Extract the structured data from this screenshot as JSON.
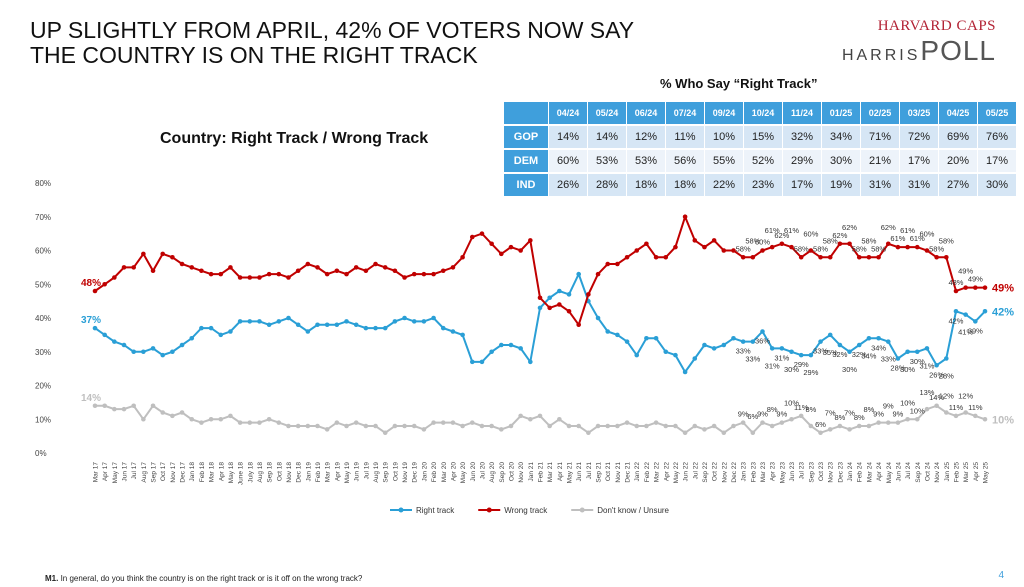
{
  "header": {
    "title": [
      "UP SLIGHTLY FROM APRIL, 42% OF VOTERS NOW SAY",
      "THE COUNTRY IS ON THE RIGHT TRACK"
    ],
    "logo": [
      "HARVARD CAPS",
      "HARRIS",
      "POLL"
    ]
  },
  "table": {
    "title": "% Who Say “Right Track”",
    "columns": [
      "04/24",
      "05/24",
      "06/24",
      "07/24",
      "09/24",
      "10/24",
      "11/24",
      "01/25",
      "02/25",
      "03/25",
      "04/25",
      "05/25"
    ],
    "rows": [
      {
        "label": "GOP",
        "cells": [
          "14%",
          "14%",
          "12%",
          "11%",
          "10%",
          "15%",
          "32%",
          "34%",
          "71%",
          "72%",
          "69%",
          "76%"
        ]
      },
      {
        "label": "DEM",
        "cells": [
          "60%",
          "53%",
          "53%",
          "56%",
          "55%",
          "52%",
          "29%",
          "30%",
          "21%",
          "17%",
          "20%",
          "17%"
        ]
      },
      {
        "label": "IND",
        "cells": [
          "26%",
          "28%",
          "18%",
          "18%",
          "22%",
          "23%",
          "17%",
          "19%",
          "31%",
          "31%",
          "27%",
          "30%"
        ]
      }
    ]
  },
  "chart_data": {
    "type": "line",
    "title": "Country: Right Track / Wrong Track",
    "categories": [
      "Mar 17",
      "Apr 17",
      "May 17",
      "Jun 17",
      "Jul 17",
      "Aug 17",
      "Sep 17",
      "Oct 17",
      "Nov 17",
      "Dec 17",
      "Jan 18",
      "Feb 18",
      "Mar 18",
      "Apr 18",
      "May 18",
      "June 18",
      "July 18",
      "Aug 18",
      "Sep 18",
      "Oct 18",
      "Nov 18",
      "Dec 18",
      "Jan 19",
      "Feb 19",
      "Mar 19",
      "Apr 19",
      "May 19",
      "Jun 19",
      "Jul 19",
      "Aug 19",
      "Sep 19",
      "Oct 19",
      "Nov 19",
      "Dec 19",
      "Jan 20",
      "Feb 20",
      "Mar 20",
      "Apr 20",
      "May 20",
      "Jun 20",
      "Jul 20",
      "Aug 20",
      "Sep 20",
      "Oct 20",
      "Nov 20",
      "Jan 21",
      "Feb 21",
      "Mar 21",
      "Apr 21",
      "May 21",
      "Jun 21",
      "Jul 21",
      "Sep 21",
      "Oct 21",
      "Nov 21",
      "Dec 21",
      "Jan 22",
      "Feb 22",
      "Mar 22",
      "Apr 22",
      "May 22",
      "Jun 22",
      "Jul 22",
      "Sep 22",
      "Oct 22",
      "Nov 22",
      "Dec 22",
      "Jan 23",
      "Feb 23",
      "Mar 23",
      "Apr 23",
      "May 23",
      "Jun 23",
      "Jul 23",
      "Sep 23",
      "Oct 23",
      "Nov 23",
      "Dec 23",
      "Jan 24",
      "Feb 24",
      "Mar 24",
      "Apr 24",
      "May 24",
      "Jun 24",
      "Jul 24",
      "Sep 24",
      "Oct 24",
      "Nov 24",
      "Jan 25",
      "Feb 25",
      "Mar 25",
      "Apr 25",
      "May 25"
    ],
    "series": [
      {
        "name": "Right track",
        "color": "#2a9fd6",
        "values": [
          37,
          35,
          33,
          32,
          30,
          30,
          31,
          29,
          30,
          32,
          34,
          37,
          37,
          35,
          36,
          39,
          39,
          39,
          38,
          39,
          40,
          38,
          36,
          38,
          38,
          38,
          39,
          38,
          37,
          37,
          37,
          39,
          40,
          39,
          39,
          40,
          37,
          36,
          35,
          27,
          27,
          30,
          32,
          32,
          31,
          27,
          43,
          46,
          48,
          47,
          53,
          45,
          40,
          36,
          35,
          33,
          29,
          34,
          34,
          30,
          29,
          24,
          28,
          32,
          31,
          32,
          34,
          33,
          33,
          36,
          31,
          31,
          30,
          29,
          29,
          33,
          35,
          32,
          30,
          32,
          34,
          34,
          33,
          28,
          30,
          30,
          31,
          26,
          28,
          42,
          41,
          39,
          42
        ],
        "value_labels": [
          "37%",
          null,
          null,
          null,
          null,
          null,
          null,
          null,
          null,
          null,
          null,
          null,
          null,
          null,
          null,
          null,
          null,
          null,
          null,
          null,
          null,
          null,
          null,
          null,
          null,
          null,
          null,
          null,
          null,
          null,
          null,
          null,
          null,
          null,
          null,
          null,
          null,
          null,
          null,
          null,
          null,
          null,
          null,
          null,
          null,
          null,
          null,
          null,
          null,
          null,
          null,
          null,
          null,
          null,
          null,
          null,
          null,
          null,
          null,
          null,
          null,
          null,
          null,
          null,
          null,
          null,
          null,
          "33%",
          "33%",
          "36%",
          "31%",
          "31%",
          "30%",
          "29%",
          "29%",
          "33%",
          "35%",
          "32%",
          "30%",
          "32%",
          "34%",
          "34%",
          "33%",
          "28%",
          "30%",
          "30%",
          "31%",
          "26%",
          "28%",
          "42%",
          "41%",
          "39%",
          "42%"
        ]
      },
      {
        "name": "Wrong track",
        "color": "#c00000",
        "values": [
          48,
          50,
          52,
          55,
          55,
          59,
          54,
          59,
          58,
          56,
          55,
          54,
          53,
          53,
          55,
          52,
          52,
          52,
          53,
          53,
          52,
          54,
          56,
          55,
          53,
          54,
          53,
          55,
          54,
          56,
          55,
          54,
          52,
          53,
          53,
          53,
          54,
          55,
          58,
          64,
          65,
          62,
          59,
          61,
          60,
          63,
          46,
          43,
          44,
          42,
          38,
          47,
          53,
          56,
          56,
          58,
          60,
          62,
          58,
          58,
          61,
          70,
          63,
          61,
          63,
          60,
          60,
          58,
          58,
          60,
          61,
          62,
          61,
          58,
          60,
          58,
          58,
          62,
          62,
          58,
          58,
          58,
          62,
          61,
          61,
          61,
          60,
          58,
          58,
          48,
          49,
          49,
          49
        ],
        "value_labels": [
          "48%",
          null,
          null,
          null,
          null,
          null,
          null,
          null,
          null,
          null,
          null,
          null,
          null,
          null,
          null,
          null,
          null,
          null,
          null,
          null,
          null,
          null,
          null,
          null,
          null,
          null,
          null,
          null,
          null,
          null,
          null,
          null,
          null,
          null,
          null,
          null,
          null,
          null,
          null,
          null,
          null,
          null,
          null,
          null,
          null,
          null,
          null,
          null,
          null,
          null,
          null,
          null,
          null,
          null,
          null,
          null,
          null,
          null,
          null,
          null,
          null,
          null,
          null,
          null,
          null,
          null,
          null,
          "58%",
          "58%",
          "60%",
          "61%",
          "62%",
          "61%",
          "58%",
          "60%",
          "58%",
          "58%",
          "62%",
          "62%",
          "58%",
          "58%",
          "58%",
          "62%",
          "61%",
          "61%",
          "61%",
          "60%",
          "58%",
          "58%",
          "48%",
          "49%",
          "49%",
          "49%"
        ]
      },
      {
        "name": "Don't know / Unsure",
        "color": "#bfbfbf",
        "values": [
          14,
          14,
          13,
          13,
          14,
          10,
          14,
          12,
          11,
          12,
          10,
          9,
          10,
          10,
          11,
          9,
          9,
          9,
          10,
          9,
          8,
          8,
          8,
          8,
          7,
          9,
          8,
          9,
          8,
          8,
          6,
          8,
          8,
          8,
          7,
          9,
          9,
          9,
          8,
          9,
          8,
          8,
          7,
          8,
          11,
          10,
          11,
          8,
          10,
          8,
          8,
          6,
          8,
          8,
          8,
          9,
          8,
          8,
          9,
          8,
          8,
          6,
          8,
          7,
          8,
          6,
          8,
          9,
          6,
          9,
          8,
          9,
          10,
          11,
          8,
          6,
          7,
          8,
          7,
          8,
          8,
          9,
          9,
          9,
          10,
          10,
          13,
          14,
          12,
          11,
          12,
          11,
          10
        ],
        "value_labels": [
          "14%",
          null,
          null,
          null,
          null,
          null,
          null,
          null,
          null,
          null,
          null,
          null,
          null,
          null,
          null,
          null,
          null,
          null,
          null,
          null,
          null,
          null,
          null,
          null,
          null,
          null,
          null,
          null,
          null,
          null,
          null,
          null,
          null,
          null,
          null,
          null,
          null,
          null,
          null,
          null,
          null,
          null,
          null,
          null,
          null,
          null,
          null,
          null,
          null,
          null,
          null,
          null,
          null,
          null,
          null,
          null,
          null,
          null,
          null,
          null,
          null,
          null,
          null,
          null,
          null,
          null,
          null,
          "9%",
          "6%",
          "9%",
          "8%",
          "9%",
          "10%",
          "11%",
          "8%",
          "6%",
          "7%",
          "8%",
          "7%",
          "8%",
          "8%",
          "9%",
          "9%",
          "9%",
          "10%",
          "10%",
          "13%",
          "14%",
          "12%",
          "11%",
          "12%",
          "11%",
          "10%"
        ]
      }
    ],
    "ylim": [
      0,
      80
    ],
    "yticks": [
      {
        "value": 0,
        "label": "0%"
      },
      {
        "value": 10,
        "label": "10%"
      },
      {
        "value": 20,
        "label": "20%"
      },
      {
        "value": 30,
        "label": "30%"
      },
      {
        "value": 40,
        "label": "40%"
      },
      {
        "value": 50,
        "label": "50%"
      },
      {
        "value": 60,
        "label": "60%"
      },
      {
        "value": 70,
        "label": "70%"
      },
      {
        "value": 80,
        "label": "80%"
      }
    ],
    "legend": "bottom"
  },
  "footnote": {
    "label": "M1.",
    "text": " In general, do you think the country is on the right track or is it off on the wrong track?"
  },
  "page_number": "4"
}
